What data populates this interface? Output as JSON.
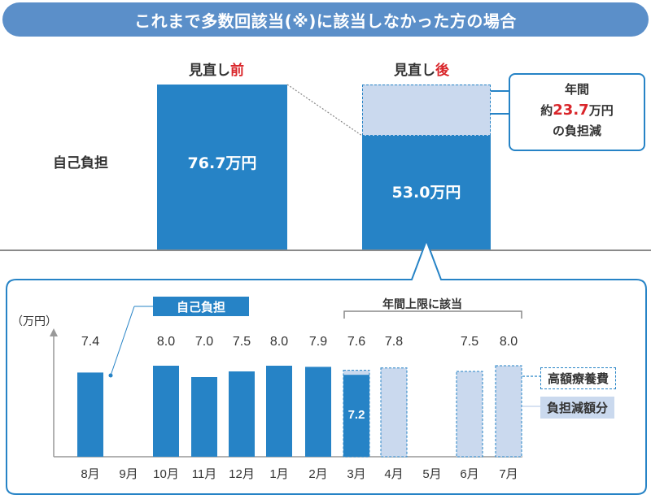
{
  "banner": {
    "title": "これまで多数回該当(※)に該当しなかった方の場合"
  },
  "comparison": {
    "before_prefix": "見直し",
    "before_suffix": "前",
    "after_prefix": "見直し",
    "after_suffix": "後",
    "row_label": "自己負担",
    "before_value": "76.7万円",
    "after_value": "53.0万円",
    "before_amount": 76.7,
    "after_amount": 53.0
  },
  "callout": {
    "line1": "年間",
    "line2_prefix": "約",
    "line2_value": "23.7",
    "line2_suffix": "万円",
    "line3": "の負担減"
  },
  "colors": {
    "bar": "#2683c6",
    "reduced": "#cad9ee",
    "accent_red": "#d9252a",
    "banner": "#5b8fc9"
  },
  "chart_data": {
    "type": "bar",
    "ylabel": "（万円）",
    "categories": [
      "8月",
      "9月",
      "10月",
      "11月",
      "12月",
      "1月",
      "2月",
      "3月",
      "4月",
      "5月",
      "6月",
      "7月"
    ],
    "series": [
      {
        "name": "自己負担",
        "values": [
          7.4,
          null,
          8.0,
          7.0,
          7.5,
          8.0,
          7.9,
          7.2,
          null,
          null,
          null,
          null
        ]
      },
      {
        "name": "負担減額分",
        "values": [
          null,
          null,
          null,
          null,
          null,
          null,
          null,
          7.6,
          7.8,
          null,
          7.5,
          8.0
        ]
      }
    ],
    "bar_labels": [
      "7.4",
      "",
      "8.0",
      "7.0",
      "7.5",
      "8.0",
      "7.9",
      "7.6",
      "7.8",
      "",
      "7.5",
      "8.0"
    ],
    "inner_label": "7.2",
    "annotation_self": "自己負担",
    "bracket_label": "年間上限に該当",
    "legend": [
      "高額療養費",
      "負担減額分"
    ]
  }
}
